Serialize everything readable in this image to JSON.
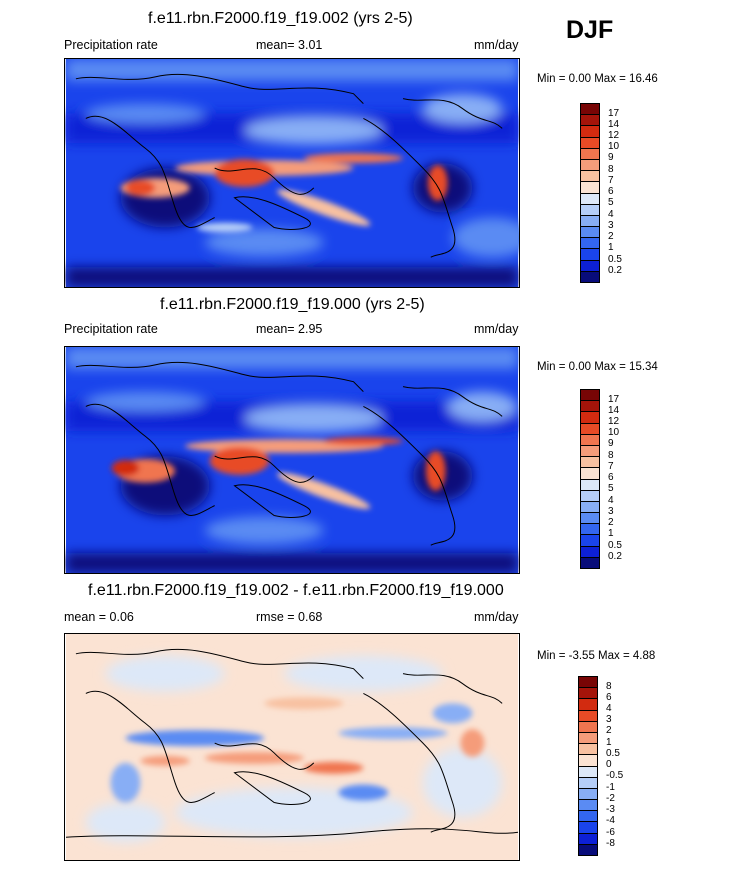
{
  "season": "DJF",
  "colors": {
    "abs_scale": [
      "#080c7a",
      "#0d20d6",
      "#1a44ec",
      "#3366f0",
      "#5a8bf3",
      "#88aef5",
      "#b5cef8",
      "#dde8f8",
      "#fbe3d3",
      "#f8c1a1",
      "#f59c7a",
      "#f0754f",
      "#e84b26",
      "#d22b10",
      "#a5140a",
      "#780505"
    ],
    "diff_scale": [
      "#080c7a",
      "#0d20d6",
      "#1a44ec",
      "#3366f0",
      "#5a8bf3",
      "#88aef5",
      "#b5cef8",
      "#dde8f8",
      "#fbe3d3",
      "#f8c1a1",
      "#f59c7a",
      "#f0754f",
      "#e84b26",
      "#d22b10",
      "#a5140a",
      "#780505"
    ],
    "land_outline": "#000000"
  },
  "panels": [
    {
      "title": "f.e11.rbn.F2000.f19_f19.002 (yrs 2-5)",
      "left_label": "Precipitation rate",
      "center_label": "mean=   3.01",
      "units": "mm/day",
      "minmax": "Min =   0.00 Max =  16.46",
      "scale": "abs_scale",
      "levels": [
        "17",
        "14",
        "12",
        "10",
        "9",
        "8",
        "7",
        "6",
        "5",
        "4",
        "3",
        "2",
        "1",
        "0.5",
        "0.2"
      ]
    },
    {
      "title": "f.e11.rbn.F2000.f19_f19.000 (yrs 2-5)",
      "left_label": "Precipitation rate",
      "center_label": "mean=   2.95",
      "units": "mm/day",
      "minmax": "Min =   0.00 Max =  15.34",
      "scale": "abs_scale",
      "levels": [
        "17",
        "14",
        "12",
        "10",
        "9",
        "8",
        "7",
        "6",
        "5",
        "4",
        "3",
        "2",
        "1",
        "0.5",
        "0.2"
      ]
    },
    {
      "title": "f.e11.rbn.F2000.f19_f19.002 - f.e11.rbn.F2000.f19_f19.000",
      "left_label": "mean =   0.06",
      "center_label": "rmse =   0.68",
      "units": "mm/day",
      "minmax": "Min =  -3.55 Max =   4.88",
      "scale": "diff_scale",
      "levels": [
        "8",
        "6",
        "4",
        "3",
        "2",
        "1",
        "0.5",
        "0",
        "-0.5",
        "-1",
        "-2",
        "-3",
        "-4",
        "-6",
        "-8"
      ]
    }
  ],
  "chart_data": [
    {
      "type": "heatmap",
      "title": "f.e11.rbn.F2000.f19_f19.002 (yrs 2-5)",
      "variable": "Precipitation rate",
      "units": "mm/day",
      "season": "DJF",
      "mean": 3.01,
      "min": 0.0,
      "max": 16.46,
      "contour_levels": [
        0.2,
        0.5,
        1,
        2,
        3,
        4,
        5,
        6,
        7,
        8,
        9,
        10,
        12,
        14,
        17
      ]
    },
    {
      "type": "heatmap",
      "title": "f.e11.rbn.F2000.f19_f19.000 (yrs 2-5)",
      "variable": "Precipitation rate",
      "units": "mm/day",
      "season": "DJF",
      "mean": 2.95,
      "min": 0.0,
      "max": 15.34,
      "contour_levels": [
        0.2,
        0.5,
        1,
        2,
        3,
        4,
        5,
        6,
        7,
        8,
        9,
        10,
        12,
        14,
        17
      ]
    },
    {
      "type": "heatmap",
      "title": "f.e11.rbn.F2000.f19_f19.002 - f.e11.rbn.F2000.f19_f19.000",
      "units": "mm/day",
      "season": "DJF",
      "mean": 0.06,
      "rmse": 0.68,
      "min": -3.55,
      "max": 4.88,
      "contour_levels": [
        -8,
        -6,
        -4,
        -3,
        -2,
        -1,
        -0.5,
        0,
        0.5,
        1,
        2,
        3,
        4,
        6,
        8
      ]
    }
  ]
}
